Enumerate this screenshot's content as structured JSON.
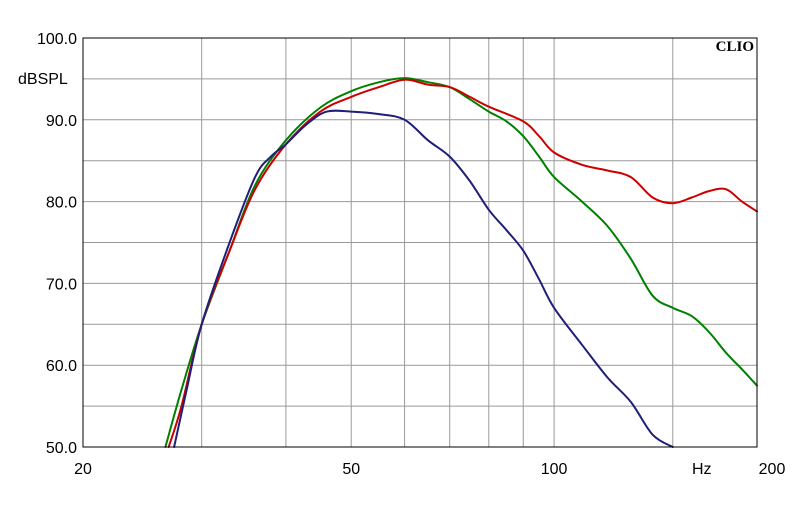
{
  "chart_data": {
    "type": "line",
    "brand": "CLIO",
    "ylabel": "dBSPL",
    "xlabel": "Hz",
    "x_scale": "log",
    "xlim": [
      20,
      200
    ],
    "ylim": [
      50,
      100
    ],
    "grid": true,
    "x_tick_labels": [
      {
        "value": 20,
        "label": "20"
      },
      {
        "value": 50,
        "label": "50"
      },
      {
        "value": 100,
        "label": "100"
      },
      {
        "value": 200,
        "label": "200"
      }
    ],
    "y_tick_labels": [
      {
        "value": 100,
        "label": "100.0"
      },
      {
        "value": 90,
        "label": "90.0"
      },
      {
        "value": 80,
        "label": "80.0"
      },
      {
        "value": 70,
        "label": "70.0"
      },
      {
        "value": 60,
        "label": "60.0"
      },
      {
        "value": 50,
        "label": "50.0"
      }
    ],
    "x_gridlines": [
      30,
      40,
      50,
      60,
      70,
      80,
      90,
      100,
      150
    ],
    "y_gridlines": [
      55,
      60,
      65,
      70,
      75,
      80,
      85,
      90,
      95
    ],
    "series": [
      {
        "color": "#008000",
        "points": [
          [
            26.5,
            50
          ],
          [
            28,
            57
          ],
          [
            30,
            65
          ],
          [
            33,
            74
          ],
          [
            36,
            82
          ],
          [
            40,
            87.5
          ],
          [
            45,
            91.5
          ],
          [
            50,
            93.5
          ],
          [
            55,
            94.6
          ],
          [
            60,
            95.1
          ],
          [
            65,
            94.6
          ],
          [
            70,
            94
          ],
          [
            75,
            92.5
          ],
          [
            80,
            91
          ],
          [
            85,
            89.8
          ],
          [
            90,
            88
          ],
          [
            95,
            85.5
          ],
          [
            100,
            83
          ],
          [
            110,
            80
          ],
          [
            120,
            77
          ],
          [
            130,
            73
          ],
          [
            140,
            68.5
          ],
          [
            150,
            67
          ],
          [
            160,
            66
          ],
          [
            170,
            64
          ],
          [
            180,
            61.5
          ],
          [
            190,
            59.5
          ],
          [
            200,
            57.5
          ]
        ]
      },
      {
        "color": "#cc0000",
        "points": [
          [
            26.8,
            50
          ],
          [
            28,
            55
          ],
          [
            30,
            65
          ],
          [
            33,
            74
          ],
          [
            36,
            81.5
          ],
          [
            40,
            87
          ],
          [
            45,
            91
          ],
          [
            50,
            92.8
          ],
          [
            55,
            94
          ],
          [
            60,
            94.9
          ],
          [
            65,
            94.3
          ],
          [
            70,
            94
          ],
          [
            75,
            92.8
          ],
          [
            80,
            91.6
          ],
          [
            90,
            89.8
          ],
          [
            95,
            88
          ],
          [
            100,
            86
          ],
          [
            110,
            84.5
          ],
          [
            120,
            83.8
          ],
          [
            130,
            83
          ],
          [
            140,
            80.5
          ],
          [
            150,
            79.8
          ],
          [
            160,
            80.5
          ],
          [
            170,
            81.3
          ],
          [
            180,
            81.5
          ],
          [
            190,
            80
          ],
          [
            200,
            78.8
          ]
        ]
      },
      {
        "color": "#1f1f7a",
        "points": [
          [
            27.3,
            50
          ],
          [
            28.5,
            57
          ],
          [
            30,
            65
          ],
          [
            33,
            75
          ],
          [
            36,
            83
          ],
          [
            38,
            85.5
          ],
          [
            40,
            87
          ],
          [
            43,
            89.5
          ],
          [
            46,
            91
          ],
          [
            50,
            91
          ],
          [
            55,
            90.7
          ],
          [
            60,
            90
          ],
          [
            65,
            87.5
          ],
          [
            70,
            85.5
          ],
          [
            75,
            82.5
          ],
          [
            80,
            79
          ],
          [
            85,
            76.5
          ],
          [
            90,
            74
          ],
          [
            95,
            70.5
          ],
          [
            100,
            67
          ],
          [
            110,
            62.5
          ],
          [
            120,
            58.5
          ],
          [
            130,
            55.5
          ],
          [
            140,
            51.5
          ],
          [
            150,
            50
          ]
        ]
      }
    ]
  }
}
